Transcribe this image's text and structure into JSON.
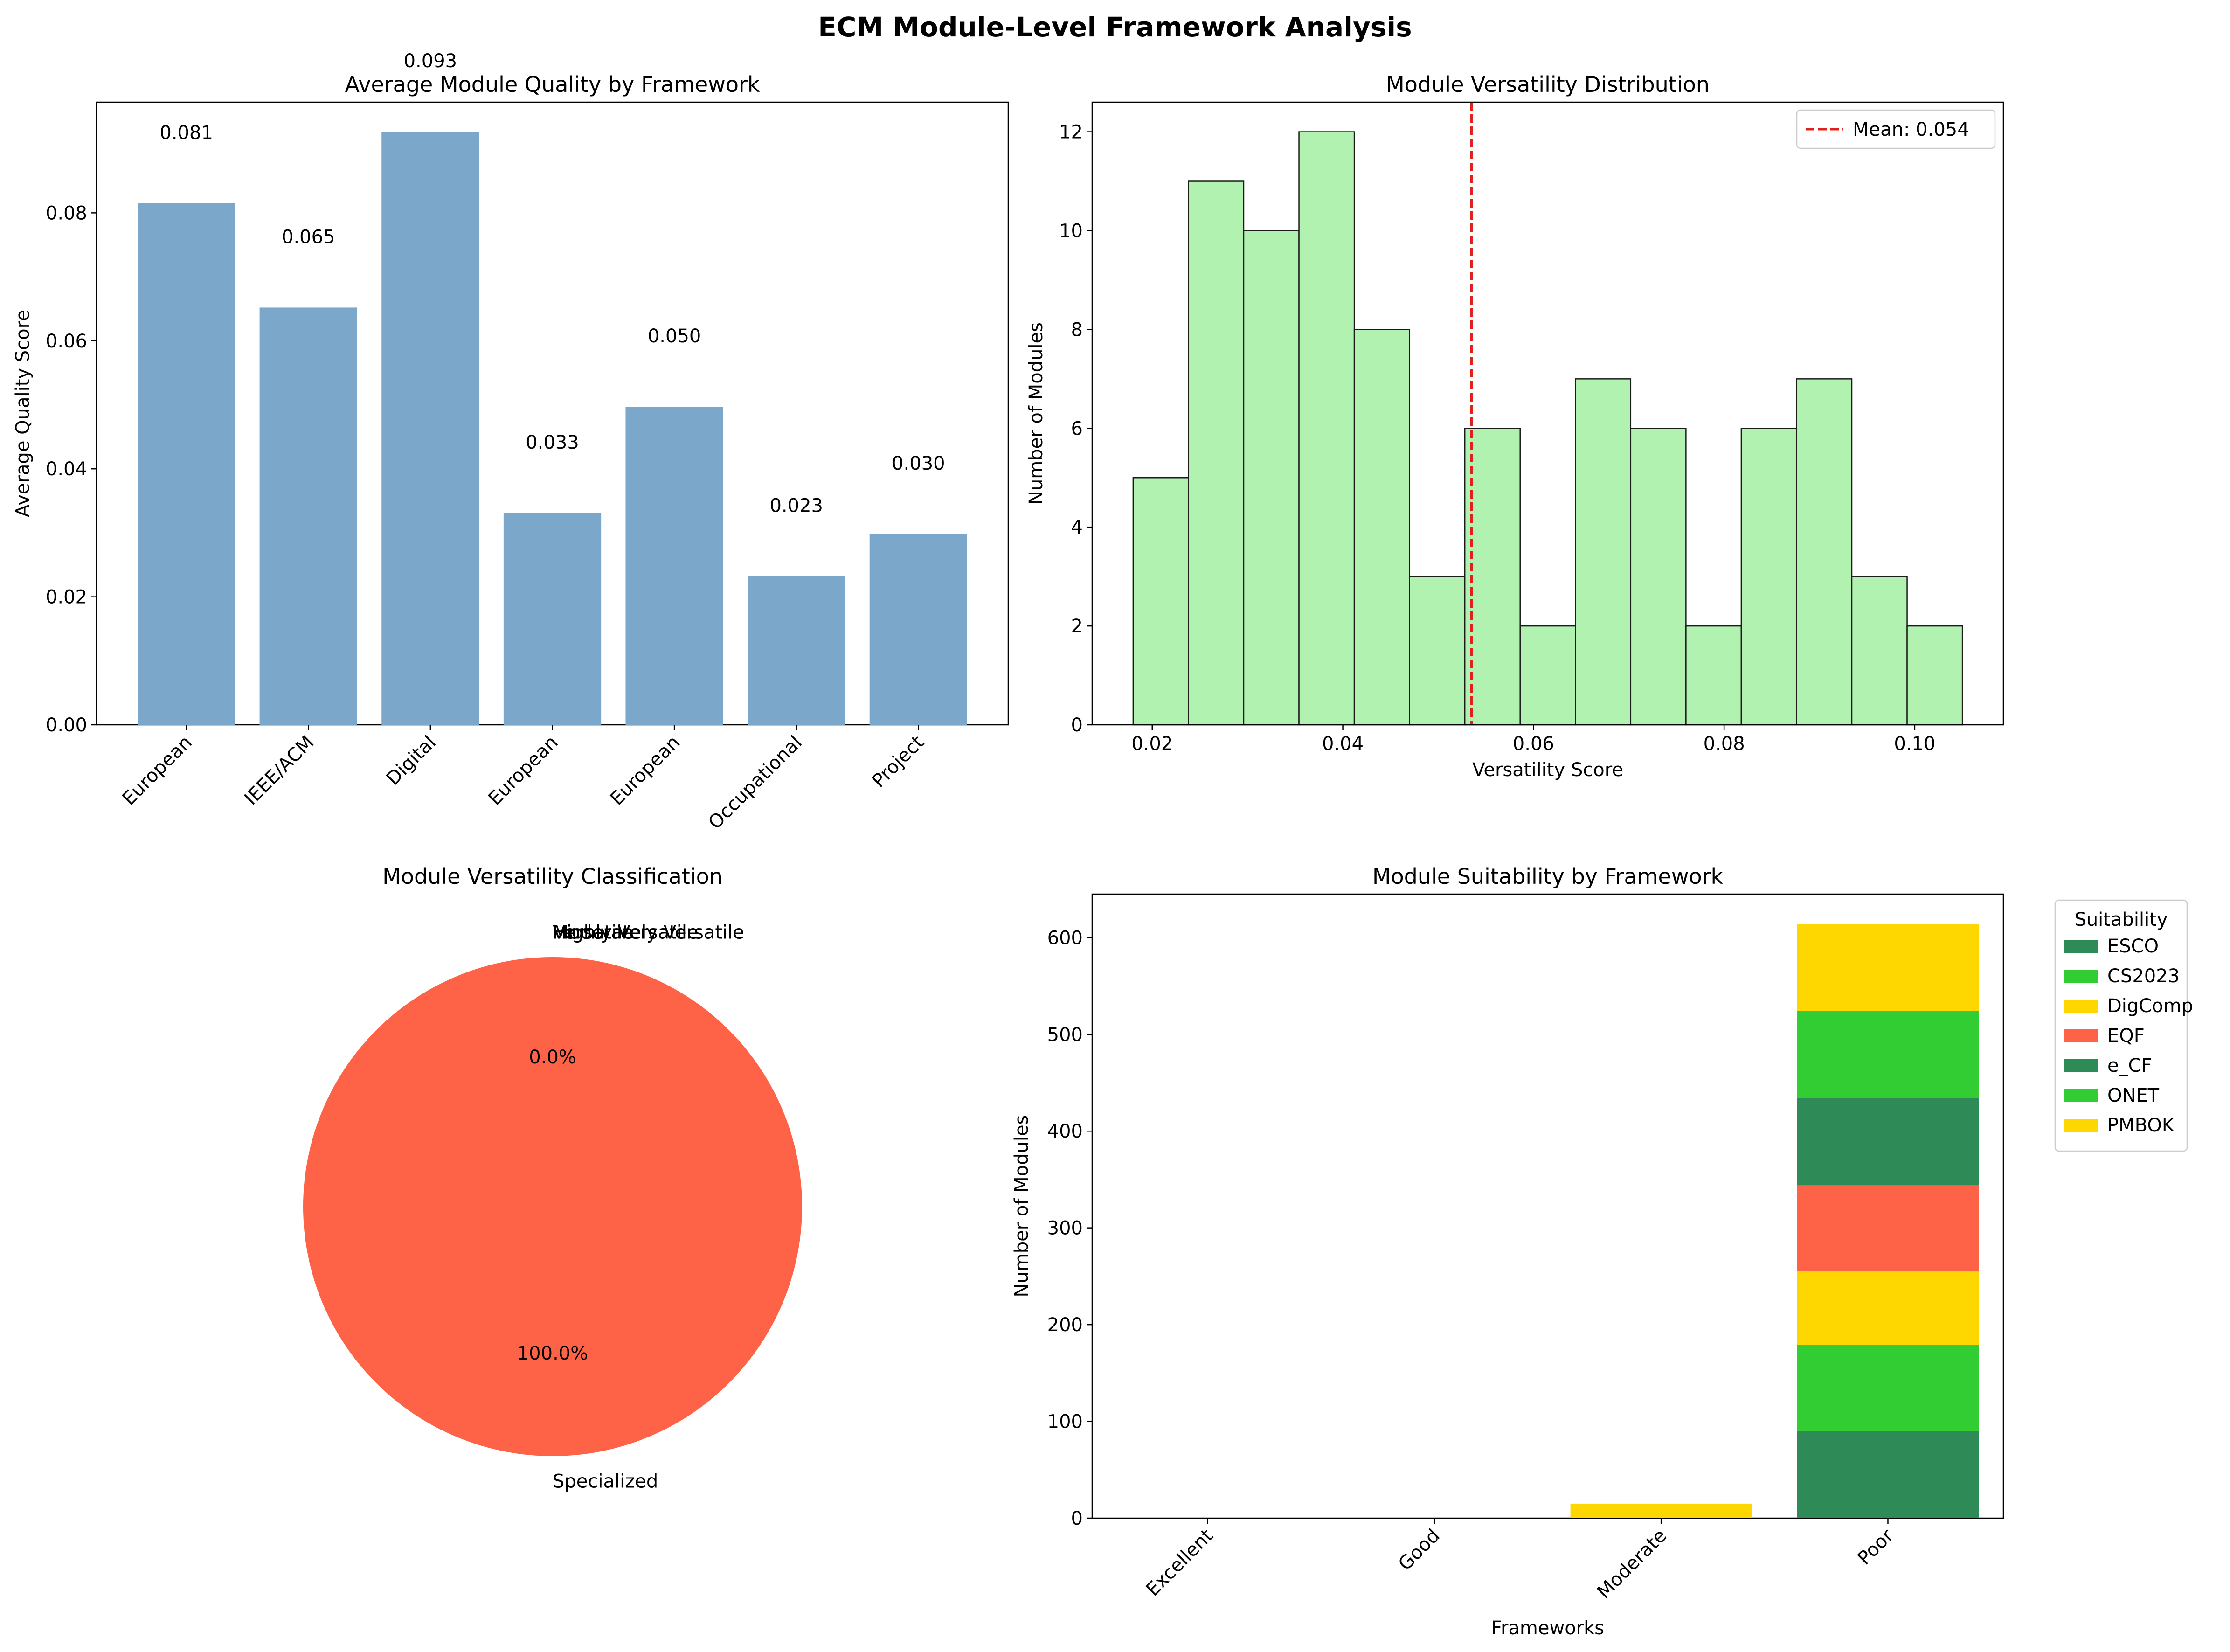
{
  "figure": {
    "title": "ECM Module-Level Framework Analysis"
  },
  "chart_data": [
    {
      "type": "bar",
      "title": "Average Module Quality by Framework",
      "xlabel": "",
      "ylabel": "Average Quality Score",
      "categories": [
        "European",
        "IEEE/ACM",
        "Digital",
        "European",
        "European",
        "Occupational",
        "Project"
      ],
      "values": [
        0.0815,
        0.0652,
        0.0927,
        0.0331,
        0.0497,
        0.0232,
        0.0298
      ],
      "value_labels": [
        "0.081",
        "0.065",
        "0.093",
        "0.033",
        "0.050",
        "0.023",
        "0.030"
      ],
      "ylim": [
        0,
        0.0973
      ],
      "yticks": [
        0.0,
        0.02,
        0.04,
        0.06,
        0.08
      ],
      "ytick_labels": [
        "0.00",
        "0.02",
        "0.04",
        "0.06",
        "0.08"
      ],
      "color": "#7ba7cb",
      "grid": false
    },
    {
      "type": "histogram",
      "title": "Module Versatility Distribution",
      "xlabel": "Versatility Score",
      "ylabel": "Number of Modules",
      "bin_edges": [
        0.018,
        0.0238,
        0.0296,
        0.0354,
        0.0412,
        0.047,
        0.0528,
        0.0586,
        0.0644,
        0.0702,
        0.076,
        0.0818,
        0.0876,
        0.0934,
        0.0992,
        0.105
      ],
      "counts": [
        5,
        11,
        10,
        12,
        8,
        3,
        6,
        2,
        7,
        6,
        2,
        6,
        7,
        3,
        2
      ],
      "xlim": [
        0.0137,
        0.1093
      ],
      "ylim": [
        0,
        12.6
      ],
      "xticks": [
        0.02,
        0.04,
        0.06,
        0.08,
        0.1
      ],
      "xtick_labels": [
        "0.02",
        "0.04",
        "0.06",
        "0.08",
        "0.10"
      ],
      "yticks": [
        0,
        2,
        4,
        6,
        8,
        10,
        12
      ],
      "ytick_labels": [
        "0",
        "2",
        "4",
        "6",
        "8",
        "10",
        "12"
      ],
      "mean": 0.0535,
      "mean_label": "Mean: 0.054",
      "bar_color": "#b1f2b0",
      "mean_color": "#e0201b",
      "legend": "top-right",
      "grid": false
    },
    {
      "type": "pie",
      "title": "Module Versatility Classification",
      "slices": [
        {
          "label": "Highly Versatile",
          "value": 0
        },
        {
          "label": "Versatile",
          "value": 0
        },
        {
          "label": "Moderately Versatile",
          "value": 0
        },
        {
          "label": "Specialized",
          "value": 100
        }
      ],
      "pct_labels": [
        "0.0%",
        "100.0%"
      ],
      "color": "#ff6347"
    },
    {
      "type": "stacked_bar",
      "title": "Module Suitability by Framework",
      "xlabel": "Frameworks",
      "ylabel": "Number of Modules",
      "categories": [
        "Excellent",
        "Good",
        "Moderate",
        "Poor"
      ],
      "series": [
        {
          "name": "ESCO",
          "color": "#2e8b57",
          "values": [
            0,
            0,
            0,
            90
          ]
        },
        {
          "name": "CS2023",
          "color": "#32cd32",
          "values": [
            0,
            0,
            0,
            89
          ]
        },
        {
          "name": "DigComp",
          "color": "#ffd700",
          "values": [
            0,
            0,
            15,
            76
          ]
        },
        {
          "name": "EQF",
          "color": "#ff6347",
          "values": [
            0,
            0,
            0,
            89
          ]
        },
        {
          "name": "e_CF",
          "color": "#2e8b57",
          "values": [
            0,
            0,
            0,
            90
          ]
        },
        {
          "name": "ONET",
          "color": "#32cd32",
          "values": [
            0,
            0,
            0,
            90
          ]
        },
        {
          "name": "PMBOK",
          "color": "#ffd700",
          "values": [
            0,
            0,
            0,
            90
          ]
        }
      ],
      "ylim": [
        0,
        645
      ],
      "yticks": [
        0,
        100,
        200,
        300,
        400,
        500,
        600
      ],
      "ytick_labels": [
        "0",
        "100",
        "200",
        "300",
        "400",
        "500",
        "600"
      ],
      "legend_title": "Suitability",
      "legend": "outside-right",
      "grid": false
    }
  ]
}
